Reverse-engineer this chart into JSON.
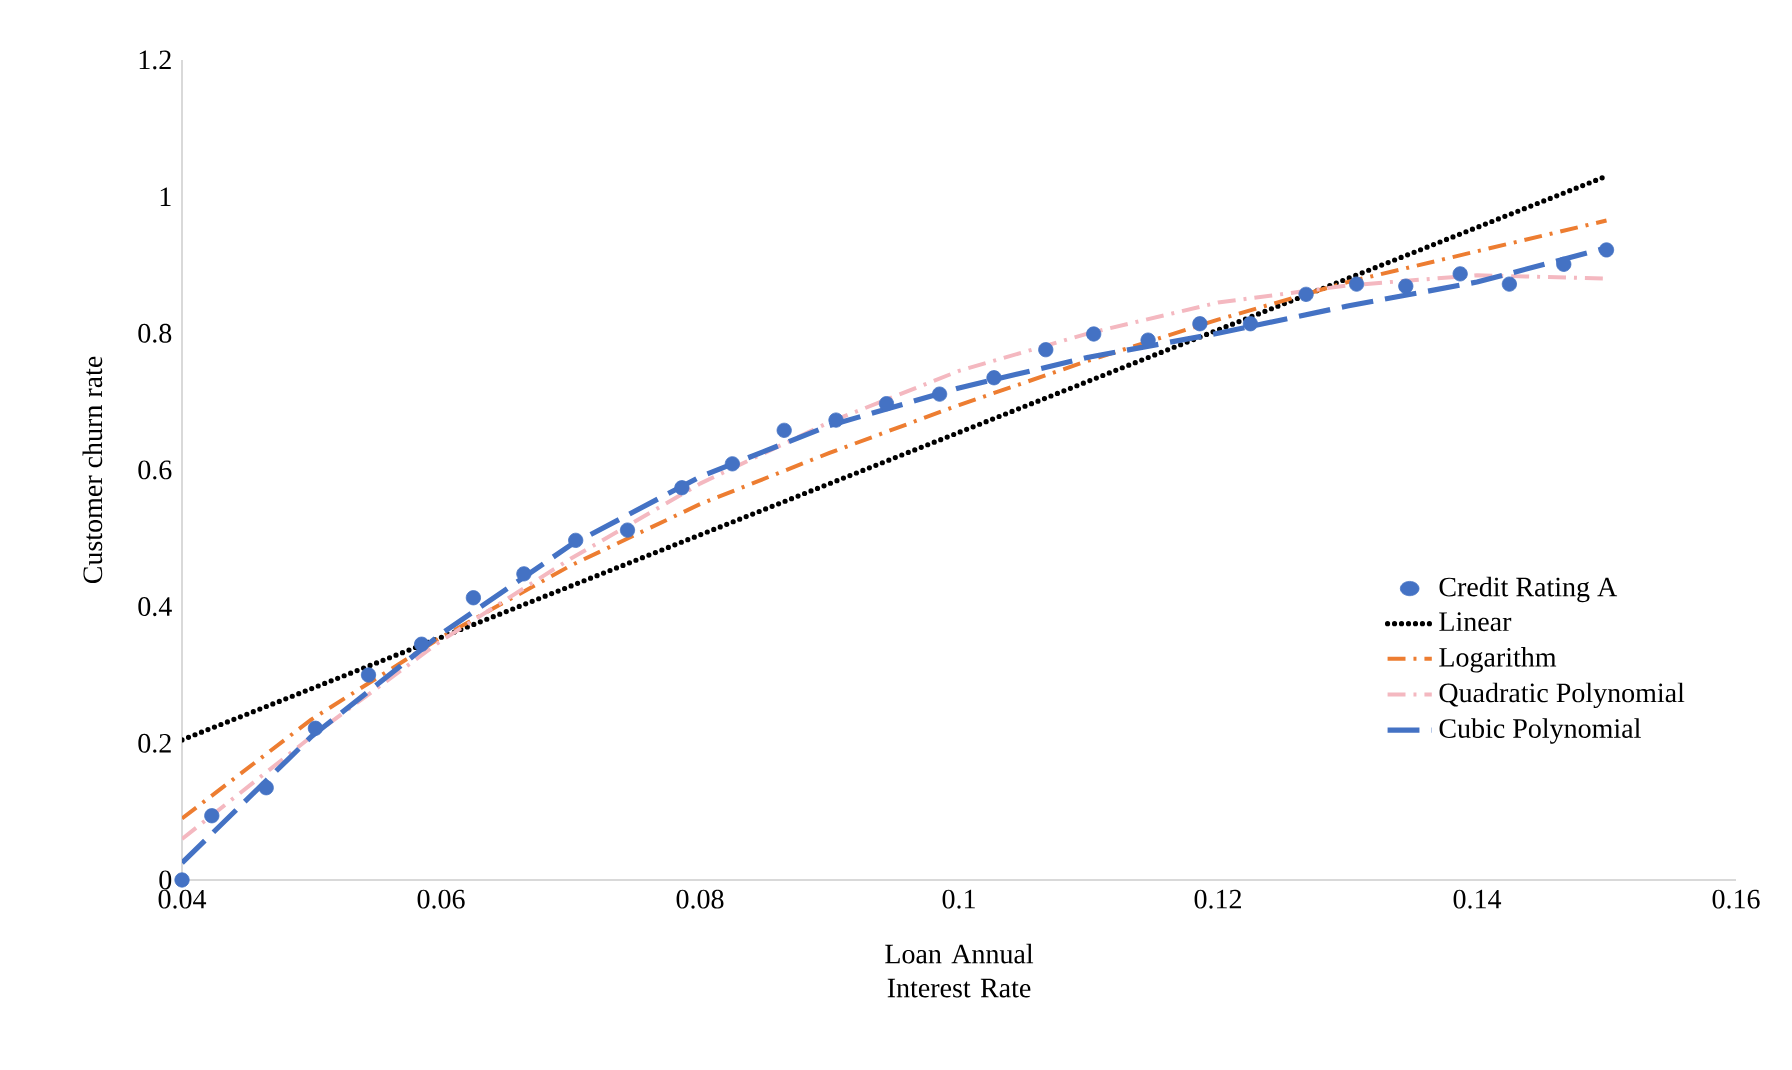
{
  "chart_data": {
    "type": "scatter",
    "xlabel": "Loan Annual Interest Rate",
    "ylabel": "Customer churn rate",
    "xlim": [
      0.04,
      0.16
    ],
    "xticks": [
      0.04,
      0.06,
      0.08,
      0.1,
      0.12,
      0.14,
      0.16
    ],
    "ylim": [
      0,
      1.2
    ],
    "yticks": [
      0,
      0.2,
      0.4,
      0.6,
      0.8,
      1,
      1.2
    ],
    "grid": false,
    "legend": "right",
    "marker": "circle",
    "series": [
      {
        "name": "Credit Rating A",
        "color": "#4472c4",
        "x": [
          0.04,
          0.0423,
          0.0465,
          0.0503,
          0.0544,
          0.0585,
          0.0625,
          0.0664,
          0.0704,
          0.0744,
          0.0786,
          0.0825,
          0.0865,
          0.0905,
          0.0944,
          0.0985,
          0.1027,
          0.1067,
          0.1104,
          0.1146,
          0.1186,
          0.1225,
          0.1268,
          0.1307,
          0.1345,
          0.1387,
          0.1425,
          0.1467,
          0.15
        ],
        "values": [
          0,
          0.094,
          0.135,
          0.222,
          0.3,
          0.345,
          0.413,
          0.448,
          0.497,
          0.512,
          0.574,
          0.609,
          0.658,
          0.673,
          0.697,
          0.711,
          0.735,
          0.776,
          0.799,
          0.79,
          0.814,
          0.814,
          0.857,
          0.872,
          0.869,
          0.887,
          0.872,
          0.901,
          0.922
        ]
      },
      {
        "name": "Linear",
        "type": "line",
        "marker": "none",
        "line_style": "dotted",
        "color": "#000000",
        "x": [
          0.04,
          0.15
        ],
        "values": [
          0.205,
          1.03
        ]
      },
      {
        "name": "Logarithm",
        "type": "line",
        "marker": "none",
        "line_style": "dashdot",
        "color": "#ed7d31",
        "x": [
          0.04,
          0.05,
          0.06,
          0.07,
          0.08,
          0.09,
          0.1,
          0.11,
          0.12,
          0.13,
          0.14,
          0.15
        ],
        "values": [
          0.09,
          0.235,
          0.355,
          0.46,
          0.55,
          0.625,
          0.695,
          0.76,
          0.82,
          0.875,
          0.92,
          0.965
        ]
      },
      {
        "name": "Quadratic Polynomial",
        "type": "line",
        "marker": "none",
        "line_style": "dashdot",
        "color": "#f4b8c0",
        "x": [
          0.04,
          0.05,
          0.06,
          0.07,
          0.08,
          0.09,
          0.1,
          0.11,
          0.12,
          0.13,
          0.14,
          0.15
        ],
        "values": [
          0.06,
          0.21,
          0.35,
          0.47,
          0.58,
          0.67,
          0.745,
          0.8,
          0.845,
          0.87,
          0.885,
          0.88
        ]
      },
      {
        "name": "Cubic Polynomial",
        "type": "line",
        "marker": "none",
        "line_style": "dashed",
        "color": "#4472c4",
        "x": [
          0.04,
          0.05,
          0.06,
          0.07,
          0.08,
          0.09,
          0.1,
          0.11,
          0.12,
          0.13,
          0.14,
          0.15
        ],
        "values": [
          0.025,
          0.21,
          0.36,
          0.49,
          0.59,
          0.665,
          0.72,
          0.765,
          0.8,
          0.84,
          0.875,
          0.925
        ]
      }
    ]
  }
}
